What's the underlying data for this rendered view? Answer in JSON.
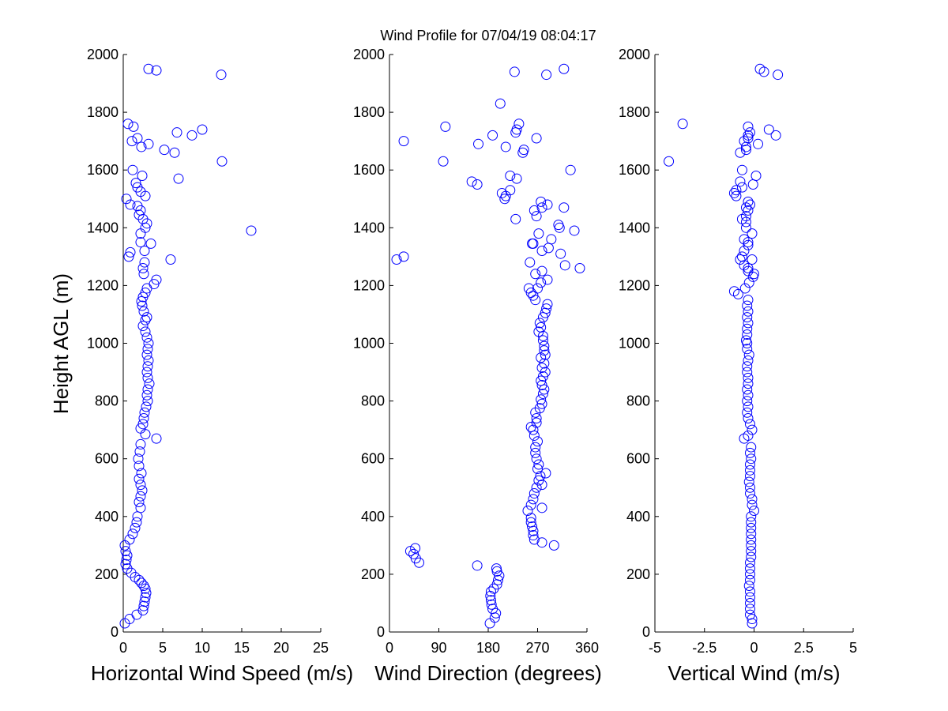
{
  "figure": {
    "title": "Wind Profile for  07/04/19 08:04:17",
    "ylabel": "Height AGL (m)",
    "marker_color": "#0000ff"
  },
  "chart_data": [
    {
      "type": "scatter",
      "name": "horizontal-wind-speed",
      "title": "",
      "xlabel": "Horizontal Wind Speed (m/s)",
      "ylabel": "Height AGL (m)",
      "xlim": [
        0,
        25
      ],
      "ylim": [
        0,
        2000
      ],
      "xticks": [
        "0",
        "5",
        "10",
        "15",
        "20",
        "25"
      ],
      "yticks": [
        "0",
        "200",
        "400",
        "600",
        "800",
        "1000",
        "1200",
        "1400",
        "1600",
        "1800",
        "2000"
      ],
      "grid": false,
      "points": [
        [
          0.2,
          30
        ],
        [
          0.8,
          45
        ],
        [
          1.7,
          60
        ],
        [
          2.5,
          75
        ],
        [
          2.6,
          90
        ],
        [
          2.7,
          105
        ],
        [
          2.8,
          120
        ],
        [
          2.9,
          135
        ],
        [
          2.8,
          150
        ],
        [
          2.6,
          160
        ],
        [
          2.3,
          170
        ],
        [
          2.0,
          180
        ],
        [
          1.5,
          190
        ],
        [
          1.0,
          205
        ],
        [
          0.5,
          220
        ],
        [
          0.3,
          235
        ],
        [
          0.4,
          250
        ],
        [
          0.5,
          265
        ],
        [
          0.3,
          280
        ],
        [
          0.2,
          300
        ],
        [
          0.8,
          320
        ],
        [
          1.2,
          340
        ],
        [
          1.5,
          360
        ],
        [
          1.7,
          380
        ],
        [
          1.8,
          400
        ],
        [
          2.2,
          430
        ],
        [
          2.0,
          450
        ],
        [
          2.2,
          470
        ],
        [
          2.4,
          490
        ],
        [
          2.2,
          510
        ],
        [
          2.0,
          530
        ],
        [
          2.3,
          550
        ],
        [
          2.0,
          575
        ],
        [
          1.9,
          600
        ],
        [
          2.1,
          625
        ],
        [
          2.2,
          650
        ],
        [
          4.2,
          670
        ],
        [
          2.8,
          685
        ],
        [
          2.2,
          705
        ],
        [
          2.5,
          720
        ],
        [
          2.6,
          740
        ],
        [
          2.7,
          760
        ],
        [
          2.9,
          780
        ],
        [
          3.1,
          800
        ],
        [
          3.0,
          820
        ],
        [
          3.1,
          840
        ],
        [
          3.3,
          860
        ],
        [
          3.1,
          880
        ],
        [
          3.0,
          900
        ],
        [
          3.1,
          920
        ],
        [
          3.2,
          940
        ],
        [
          3.0,
          960
        ],
        [
          3.1,
          980
        ],
        [
          3.2,
          1000
        ],
        [
          3.0,
          1020
        ],
        [
          2.8,
          1040
        ],
        [
          2.5,
          1060
        ],
        [
          2.8,
          1080
        ],
        [
          3.0,
          1090
        ],
        [
          2.6,
          1110
        ],
        [
          2.4,
          1130
        ],
        [
          2.3,
          1145
        ],
        [
          2.5,
          1160
        ],
        [
          2.8,
          1175
        ],
        [
          3.0,
          1190
        ],
        [
          3.9,
          1205
        ],
        [
          4.2,
          1220
        ],
        [
          2.6,
          1240
        ],
        [
          2.5,
          1260
        ],
        [
          2.7,
          1280
        ],
        [
          6.0,
          1290
        ],
        [
          0.7,
          1300
        ],
        [
          0.9,
          1315
        ],
        [
          2.7,
          1320
        ],
        [
          3.5,
          1345
        ],
        [
          2.2,
          1350
        ],
        [
          2.2,
          1380
        ],
        [
          16.2,
          1390
        ],
        [
          2.8,
          1400
        ],
        [
          3.0,
          1415
        ],
        [
          2.5,
          1430
        ],
        [
          2.0,
          1445
        ],
        [
          2.2,
          1460
        ],
        [
          1.8,
          1475
        ],
        [
          0.9,
          1480
        ],
        [
          0.4,
          1500
        ],
        [
          2.8,
          1510
        ],
        [
          2.2,
          1525
        ],
        [
          1.8,
          1540
        ],
        [
          1.6,
          1555
        ],
        [
          7.0,
          1570
        ],
        [
          2.4,
          1580
        ],
        [
          1.2,
          1600
        ],
        [
          12.5,
          1630
        ],
        [
          6.5,
          1660
        ],
        [
          5.2,
          1670
        ],
        [
          2.3,
          1680
        ],
        [
          3.2,
          1690
        ],
        [
          1.1,
          1700
        ],
        [
          1.8,
          1710
        ],
        [
          8.7,
          1720
        ],
        [
          6.8,
          1730
        ],
        [
          10.0,
          1740
        ],
        [
          1.3,
          1750
        ],
        [
          0.6,
          1760
        ],
        [
          12.4,
          1930
        ],
        [
          4.2,
          1945
        ],
        [
          3.2,
          1950
        ]
      ]
    },
    {
      "type": "scatter",
      "name": "wind-direction",
      "title": "",
      "xlabel": "Wind Direction (degrees)",
      "ylabel": "",
      "xlim": [
        0,
        360
      ],
      "ylim": [
        0,
        2000
      ],
      "xticks": [
        "0",
        "90",
        "180",
        "270",
        "360"
      ],
      "yticks": [
        "0",
        "200",
        "400",
        "600",
        "800",
        "1000",
        "1200",
        "1400",
        "1600",
        "1800",
        "2000"
      ],
      "grid": false,
      "points": [
        [
          183,
          30
        ],
        [
          192,
          50
        ],
        [
          194,
          65
        ],
        [
          188,
          80
        ],
        [
          186,
          95
        ],
        [
          185,
          110
        ],
        [
          184,
          125
        ],
        [
          185,
          140
        ],
        [
          190,
          150
        ],
        [
          196,
          165
        ],
        [
          198,
          180
        ],
        [
          200,
          195
        ],
        [
          196,
          210
        ],
        [
          195,
          220
        ],
        [
          160,
          230
        ],
        [
          54,
          240
        ],
        [
          48,
          255
        ],
        [
          44,
          270
        ],
        [
          38,
          280
        ],
        [
          47,
          290
        ],
        [
          300,
          300
        ],
        [
          278,
          310
        ],
        [
          264,
          320
        ],
        [
          262,
          335
        ],
        [
          262,
          350
        ],
        [
          260,
          365
        ],
        [
          258,
          380
        ],
        [
          258,
          395
        ],
        [
          252,
          420
        ],
        [
          278,
          430
        ],
        [
          258,
          440
        ],
        [
          262,
          460
        ],
        [
          264,
          480
        ],
        [
          268,
          500
        ],
        [
          278,
          510
        ],
        [
          272,
          525
        ],
        [
          275,
          540
        ],
        [
          285,
          550
        ],
        [
          270,
          565
        ],
        [
          272,
          580
        ],
        [
          268,
          600
        ],
        [
          266,
          620
        ],
        [
          266,
          640
        ],
        [
          270,
          660
        ],
        [
          264,
          680
        ],
        [
          262,
          700
        ],
        [
          258,
          710
        ],
        [
          268,
          725
        ],
        [
          268,
          740
        ],
        [
          266,
          760
        ],
        [
          274,
          775
        ],
        [
          278,
          790
        ],
        [
          276,
          805
        ],
        [
          280,
          825
        ],
        [
          282,
          840
        ],
        [
          278,
          855
        ],
        [
          276,
          870
        ],
        [
          280,
          885
        ],
        [
          284,
          900
        ],
        [
          278,
          915
        ],
        [
          282,
          930
        ],
        [
          276,
          950
        ],
        [
          284,
          960
        ],
        [
          282,
          975
        ],
        [
          282,
          990
        ],
        [
          280,
          1010
        ],
        [
          280,
          1025
        ],
        [
          272,
          1040
        ],
        [
          276,
          1055
        ],
        [
          274,
          1070
        ],
        [
          280,
          1090
        ],
        [
          284,
          1105
        ],
        [
          286,
          1120
        ],
        [
          288,
          1135
        ],
        [
          266,
          1150
        ],
        [
          262,
          1165
        ],
        [
          258,
          1175
        ],
        [
          270,
          1190
        ],
        [
          254,
          1190
        ],
        [
          288,
          1220
        ],
        [
          276,
          1210
        ],
        [
          266,
          1240
        ],
        [
          278,
          1250
        ],
        [
          256,
          1280
        ],
        [
          347,
          1260
        ],
        [
          320,
          1270
        ],
        [
          13,
          1290
        ],
        [
          26,
          1300
        ],
        [
          278,
          1320
        ],
        [
          312,
          1310
        ],
        [
          290,
          1330
        ],
        [
          262,
          1345
        ],
        [
          260,
          1345
        ],
        [
          295,
          1360
        ],
        [
          272,
          1380
        ],
        [
          310,
          1400
        ],
        [
          337,
          1390
        ],
        [
          308,
          1410
        ],
        [
          230,
          1430
        ],
        [
          268,
          1440
        ],
        [
          264,
          1460
        ],
        [
          278,
          1470
        ],
        [
          288,
          1480
        ],
        [
          318,
          1470
        ],
        [
          276,
          1490
        ],
        [
          210,
          1500
        ],
        [
          212,
          1510
        ],
        [
          205,
          1520
        ],
        [
          220,
          1530
        ],
        [
          160,
          1550
        ],
        [
          150,
          1560
        ],
        [
          232,
          1570
        ],
        [
          220,
          1580
        ],
        [
          330,
          1600
        ],
        [
          98,
          1630
        ],
        [
          243,
          1660
        ],
        [
          245,
          1670
        ],
        [
          212,
          1680
        ],
        [
          162,
          1690
        ],
        [
          26,
          1700
        ],
        [
          268,
          1710
        ],
        [
          188,
          1720
        ],
        [
          230,
          1730
        ],
        [
          232,
          1740
        ],
        [
          102,
          1750
        ],
        [
          236,
          1760
        ],
        [
          202,
          1830
        ],
        [
          286,
          1930
        ],
        [
          228,
          1940
        ],
        [
          318,
          1950
        ]
      ]
    },
    {
      "type": "scatter",
      "name": "vertical-wind",
      "title": "",
      "xlabel": "Vertical Wind (m/s)",
      "ylabel": "",
      "xlim": [
        -5,
        5
      ],
      "ylim": [
        0,
        2000
      ],
      "xticks": [
        "-5",
        "-2.5",
        "0",
        "2.5",
        "5"
      ],
      "yticks": [
        "0",
        "200",
        "400",
        "600",
        "800",
        "1000",
        "1200",
        "1400",
        "1600",
        "1800",
        "2000"
      ],
      "grid": false,
      "points": [
        [
          -0.1,
          30
        ],
        [
          -0.1,
          45
        ],
        [
          -0.2,
          60
        ],
        [
          -0.2,
          80
        ],
        [
          -0.2,
          100
        ],
        [
          -0.2,
          120
        ],
        [
          -0.2,
          140
        ],
        [
          -0.25,
          160
        ],
        [
          -0.2,
          180
        ],
        [
          -0.2,
          200
        ],
        [
          -0.2,
          220
        ],
        [
          -0.2,
          240
        ],
        [
          -0.15,
          260
        ],
        [
          -0.15,
          280
        ],
        [
          -0.15,
          300
        ],
        [
          -0.15,
          320
        ],
        [
          -0.15,
          340
        ],
        [
          -0.15,
          360
        ],
        [
          -0.15,
          380
        ],
        [
          -0.15,
          400
        ],
        [
          0.0,
          420
        ],
        [
          -0.1,
          440
        ],
        [
          -0.1,
          460
        ],
        [
          -0.2,
          480
        ],
        [
          -0.2,
          500
        ],
        [
          -0.25,
          520
        ],
        [
          -0.2,
          540
        ],
        [
          -0.2,
          560
        ],
        [
          -0.2,
          580
        ],
        [
          -0.15,
          600
        ],
        [
          -0.2,
          620
        ],
        [
          -0.15,
          640
        ],
        [
          -0.5,
          670
        ],
        [
          -0.3,
          680
        ],
        [
          -0.1,
          700
        ],
        [
          -0.2,
          720
        ],
        [
          -0.3,
          740
        ],
        [
          -0.35,
          760
        ],
        [
          -0.3,
          780
        ],
        [
          -0.35,
          800
        ],
        [
          -0.3,
          820
        ],
        [
          -0.35,
          840
        ],
        [
          -0.3,
          860
        ],
        [
          -0.3,
          880
        ],
        [
          -0.35,
          900
        ],
        [
          -0.35,
          920
        ],
        [
          -0.3,
          940
        ],
        [
          -0.25,
          960
        ],
        [
          -0.35,
          980
        ],
        [
          -0.35,
          1000
        ],
        [
          -0.4,
          1010
        ],
        [
          -0.35,
          1030
        ],
        [
          -0.35,
          1050
        ],
        [
          -0.3,
          1070
        ],
        [
          -0.35,
          1090
        ],
        [
          -0.3,
          1110
        ],
        [
          -0.35,
          1130
        ],
        [
          -0.3,
          1150
        ],
        [
          -0.8,
          1170
        ],
        [
          -1.0,
          1180
        ],
        [
          -0.45,
          1190
        ],
        [
          -0.25,
          1210
        ],
        [
          -0.05,
          1230
        ],
        [
          0.0,
          1240
        ],
        [
          -0.3,
          1250
        ],
        [
          -0.3,
          1260
        ],
        [
          -0.5,
          1270
        ],
        [
          -0.7,
          1290
        ],
        [
          -0.6,
          1300
        ],
        [
          -0.1,
          1290
        ],
        [
          -0.5,
          1320
        ],
        [
          -0.3,
          1340
        ],
        [
          -0.3,
          1350
        ],
        [
          -0.5,
          1360
        ],
        [
          -0.1,
          1380
        ],
        [
          -0.4,
          1400
        ],
        [
          -0.4,
          1420
        ],
        [
          -0.6,
          1430
        ],
        [
          -0.4,
          1440
        ],
        [
          -0.3,
          1460
        ],
        [
          -0.4,
          1470
        ],
        [
          -0.2,
          1480
        ],
        [
          -0.3,
          1490
        ],
        [
          -0.9,
          1510
        ],
        [
          -1.0,
          1520
        ],
        [
          -0.9,
          1530
        ],
        [
          -0.6,
          1540
        ],
        [
          -0.7,
          1560
        ],
        [
          -0.05,
          1550
        ],
        [
          0.1,
          1580
        ],
        [
          -0.6,
          1600
        ],
        [
          -4.3,
          1630
        ],
        [
          -0.7,
          1660
        ],
        [
          -0.4,
          1680
        ],
        [
          -0.5,
          1700
        ],
        [
          -0.3,
          1710
        ],
        [
          -0.3,
          1720
        ],
        [
          0.2,
          1690
        ],
        [
          1.1,
          1720
        ],
        [
          0.75,
          1740
        ],
        [
          -0.3,
          1750
        ],
        [
          -3.6,
          1760
        ],
        [
          -0.4,
          1670
        ],
        [
          -0.2,
          1730
        ],
        [
          1.2,
          1930
        ],
        [
          0.5,
          1940
        ],
        [
          0.3,
          1950
        ]
      ]
    }
  ]
}
